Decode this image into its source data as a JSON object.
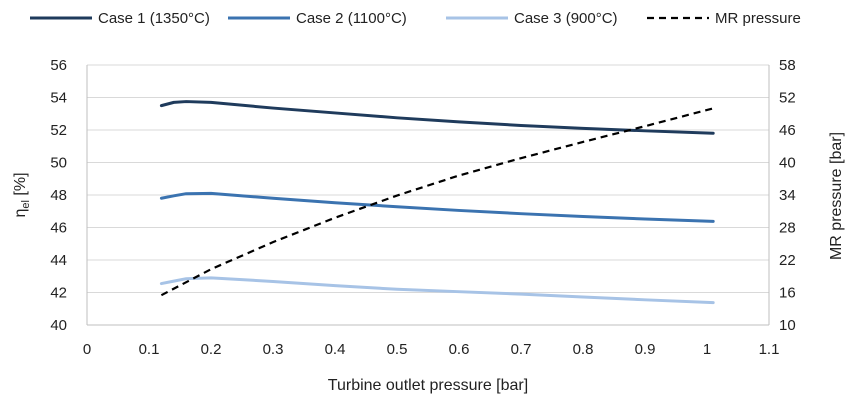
{
  "chart_data": {
    "type": "line",
    "title": "",
    "xlabel": "Turbine outlet pressure [bar]",
    "ylabel_left": {
      "main": "η",
      "sub": "el",
      "unit": " [%]"
    },
    "ylabel_right": "MR pressure [bar]",
    "xlim": [
      0,
      1.1
    ],
    "ylim_left": [
      40,
      56
    ],
    "ylim_right": [
      10,
      58
    ],
    "x_ticks": [
      "0",
      "0.1",
      "0.2",
      "0.3",
      "0.4",
      "0.5",
      "0.6",
      "0.7",
      "0.8",
      "0.9",
      "1",
      "1.1"
    ],
    "y_left_ticks": [
      "40",
      "42",
      "44",
      "46",
      "48",
      "50",
      "52",
      "54",
      "56"
    ],
    "y_right_ticks": [
      "10",
      "16",
      "22",
      "28",
      "34",
      "40",
      "46",
      "52",
      "58"
    ],
    "grid": "horizontal",
    "legend_position": "top",
    "series": [
      {
        "name": "Case 1 (1350°C)",
        "axis": "left",
        "style": "solid",
        "color": "#1f3b5c",
        "x": [
          0.12,
          0.14,
          0.16,
          0.2,
          0.3,
          0.4,
          0.5,
          0.6,
          0.7,
          0.8,
          0.9,
          1.01
        ],
        "y": [
          53.5,
          53.7,
          53.75,
          53.7,
          53.35,
          53.05,
          52.75,
          52.5,
          52.28,
          52.1,
          51.95,
          51.8
        ]
      },
      {
        "name": "Case 2 (1100°C)",
        "axis": "left",
        "style": "solid",
        "color": "#3b73b0",
        "x": [
          0.12,
          0.14,
          0.16,
          0.2,
          0.3,
          0.4,
          0.5,
          0.6,
          0.7,
          0.8,
          0.9,
          1.01
        ],
        "y": [
          47.8,
          47.95,
          48.08,
          48.1,
          47.8,
          47.52,
          47.28,
          47.05,
          46.85,
          46.68,
          46.52,
          46.38
        ]
      },
      {
        "name": "Case 3 (900°C)",
        "axis": "left",
        "style": "solid",
        "color": "#a7c3e6",
        "x": [
          0.12,
          0.14,
          0.16,
          0.2,
          0.3,
          0.4,
          0.5,
          0.6,
          0.7,
          0.8,
          0.9,
          1.01
        ],
        "y": [
          42.55,
          42.7,
          42.85,
          42.9,
          42.68,
          42.42,
          42.2,
          42.05,
          41.9,
          41.72,
          41.55,
          41.38
        ]
      },
      {
        "name": "MR pressure",
        "axis": "right",
        "style": "dashed",
        "color": "#000000",
        "x": [
          0.12,
          0.2,
          0.3,
          0.4,
          0.5,
          0.6,
          0.7,
          0.8,
          0.9,
          1.01
        ],
        "y": [
          15.5,
          20.3,
          25.3,
          29.8,
          33.9,
          37.6,
          40.8,
          43.8,
          46.7,
          50.0
        ]
      }
    ]
  }
}
